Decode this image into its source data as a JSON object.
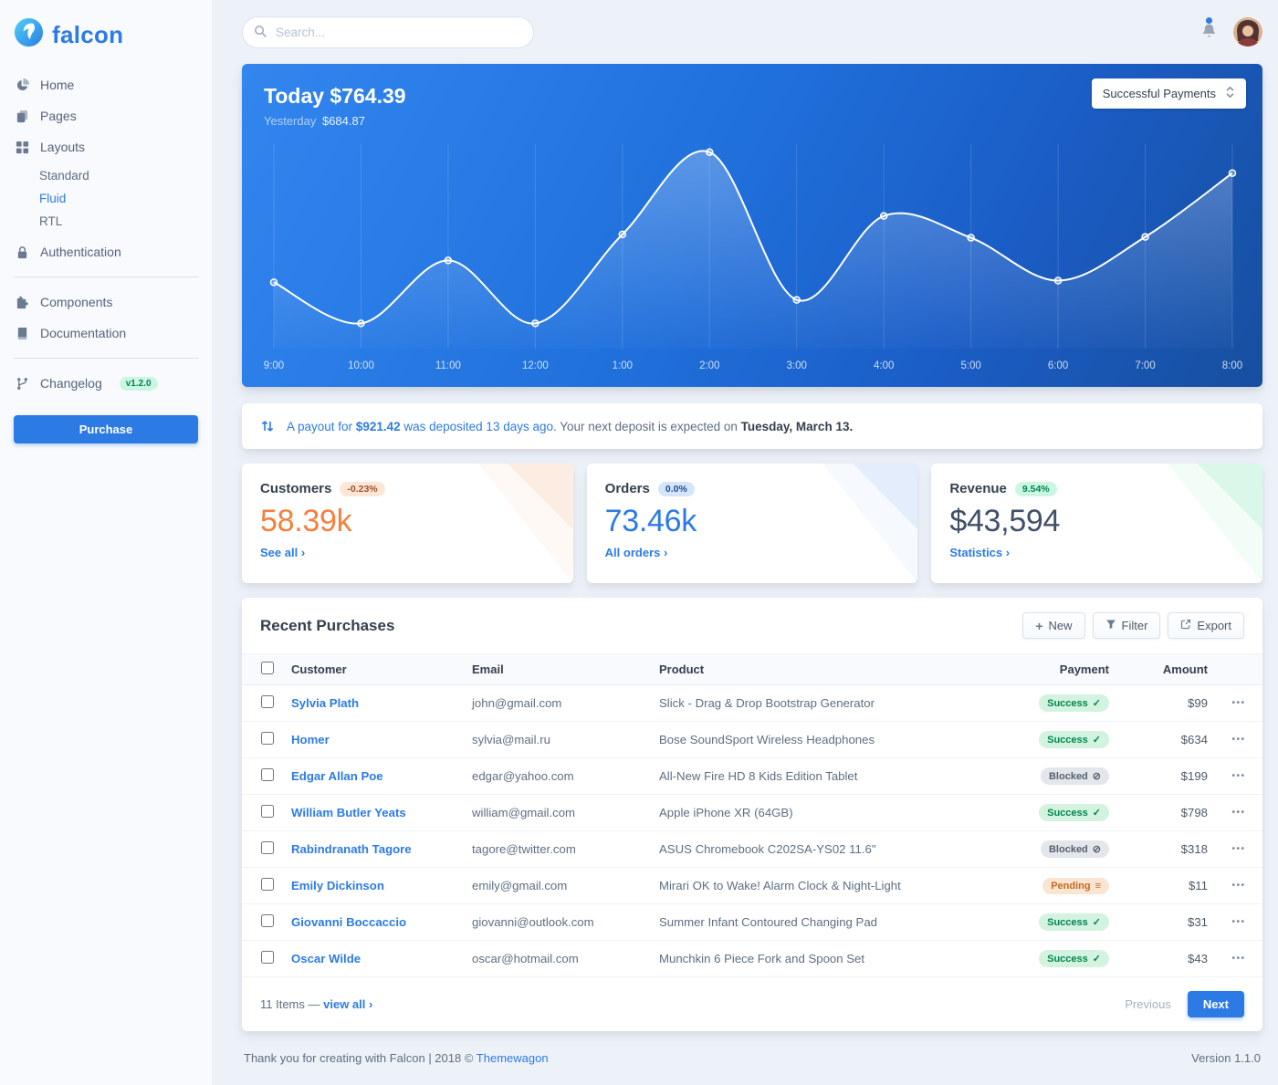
{
  "colors": {
    "brand": "#2c7be5",
    "accent_orange": "#f5803e",
    "success": "#00d27a",
    "success_text": "#00864e",
    "text_dark": "#344050",
    "text_muted": "#5e6e82",
    "page_bg": "#edf2f9",
    "sidebar_bg": "#f9fafd",
    "chart_gradient_start": "#3286ee",
    "chart_gradient_end": "#174f9f"
  },
  "brand": {
    "name": "falcon"
  },
  "topbar": {
    "search_placeholder": "Search..."
  },
  "sidebar": {
    "items": [
      {
        "label": "Home",
        "icon": "chart-pie-icon"
      },
      {
        "label": "Pages",
        "icon": "copy-icon"
      },
      {
        "label": "Layouts",
        "icon": "grid-icon",
        "children": [
          "Standard",
          "Fluid",
          "RTL"
        ],
        "active_child": "Fluid"
      },
      {
        "label": "Authentication",
        "icon": "lock-icon"
      },
      {
        "label": "Components",
        "icon": "puzzle-icon"
      },
      {
        "label": "Documentation",
        "icon": "book-icon"
      },
      {
        "label": "Changelog",
        "icon": "code-branch-icon",
        "badge": "v1.2.0"
      }
    ],
    "purchase_label": "Purchase"
  },
  "chart": {
    "title": "Today $764.39",
    "subtitle_label": "Yesterday",
    "subtitle_value": "$684.87",
    "dropdown_label": "Successful Payments"
  },
  "chart_data": {
    "type": "line",
    "title": "Today $764.39",
    "x": [
      "9:00",
      "10:00",
      "11:00",
      "12:00",
      "1:00",
      "2:00",
      "3:00",
      "4:00",
      "5:00",
      "6:00",
      "7:00",
      "8:00"
    ],
    "values": [
      79,
      30,
      105,
      30,
      136,
      234,
      58,
      158,
      132,
      81,
      133,
      209
    ],
    "ylim": [
      0,
      250
    ],
    "xlabel": "",
    "ylabel": "",
    "grid": "vertical",
    "line_color": "#ffffff"
  },
  "payout": {
    "segments": [
      {
        "text": "A payout for "
      },
      {
        "text": "$921.42"
      },
      {
        "text": " was deposited 13 days ago"
      },
      {
        "text": ". Your next deposit is expected on "
      },
      {
        "text": "Tuesday, March 13."
      }
    ]
  },
  "stats": {
    "cards": [
      {
        "title": "Customers",
        "badge": "-0.23%",
        "value": "58.39k",
        "link_label": "See all",
        "accent": "#f5803e"
      },
      {
        "title": "Orders",
        "badge": "0.0%",
        "value": "73.46k",
        "link_label": "All orders",
        "accent": "#2c7be5"
      },
      {
        "title": "Revenue",
        "badge": "9.54%",
        "value": "$43,594",
        "link_label": "Statistics",
        "accent": "#40506a"
      }
    ]
  },
  "table": {
    "title": "Recent Purchases",
    "actions": {
      "new": "New",
      "filter": "Filter",
      "export": "Export"
    },
    "columns": [
      "Customer",
      "Email",
      "Product",
      "Payment",
      "Amount"
    ],
    "rows": [
      {
        "customer": "Sylvia Plath",
        "email": "john@gmail.com",
        "product": "Slick - Drag & Drop Bootstrap Generator",
        "status": "Success",
        "status_type": "success",
        "amount": "$99"
      },
      {
        "customer": "Homer",
        "email": "sylvia@mail.ru",
        "product": "Bose SoundSport Wireless Headphones",
        "status": "Success",
        "status_type": "success",
        "amount": "$634"
      },
      {
        "customer": "Edgar Allan Poe",
        "email": "edgar@yahoo.com",
        "product": "All-New Fire HD 8 Kids Edition Tablet",
        "status": "Blocked",
        "status_type": "blocked",
        "amount": "$199"
      },
      {
        "customer": "William Butler Yeats",
        "email": "william@gmail.com",
        "product": "Apple iPhone XR (64GB)",
        "status": "Success",
        "status_type": "success",
        "amount": "$798"
      },
      {
        "customer": "Rabindranath Tagore",
        "email": "tagore@twitter.com",
        "product": "ASUS Chromebook C202SA-YS02 11.6\"",
        "status": "Blocked",
        "status_type": "blocked",
        "amount": "$318"
      },
      {
        "customer": "Emily Dickinson",
        "email": "emily@gmail.com",
        "product": "Mirari OK to Wake! Alarm Clock & Night-Light",
        "status": "Pending",
        "status_type": "pending",
        "amount": "$11"
      },
      {
        "customer": "Giovanni Boccaccio",
        "email": "giovanni@outlook.com",
        "product": "Summer Infant Contoured Changing Pad",
        "status": "Success",
        "status_type": "success",
        "amount": "$31"
      },
      {
        "customer": "Oscar Wilde",
        "email": "oscar@hotmail.com",
        "product": "Munchkin 6 Piece Fork and Spoon Set",
        "status": "Success",
        "status_type": "success",
        "amount": "$43"
      }
    ],
    "footer": {
      "items_text": "11 Items — ",
      "view_all": "view all",
      "previous": "Previous",
      "next": "Next"
    }
  },
  "icons": {
    "status_glyphs": {
      "success": "✓",
      "blocked": "⊘",
      "pending": "≡"
    },
    "chevron_right": "›",
    "plus": "+",
    "ellipsis": "•••"
  },
  "footer": {
    "thanks_prefix": "Thank you for creating with Falcon | 2018 © ",
    "vendor": "Themewagon",
    "version": "Version 1.1.0"
  }
}
